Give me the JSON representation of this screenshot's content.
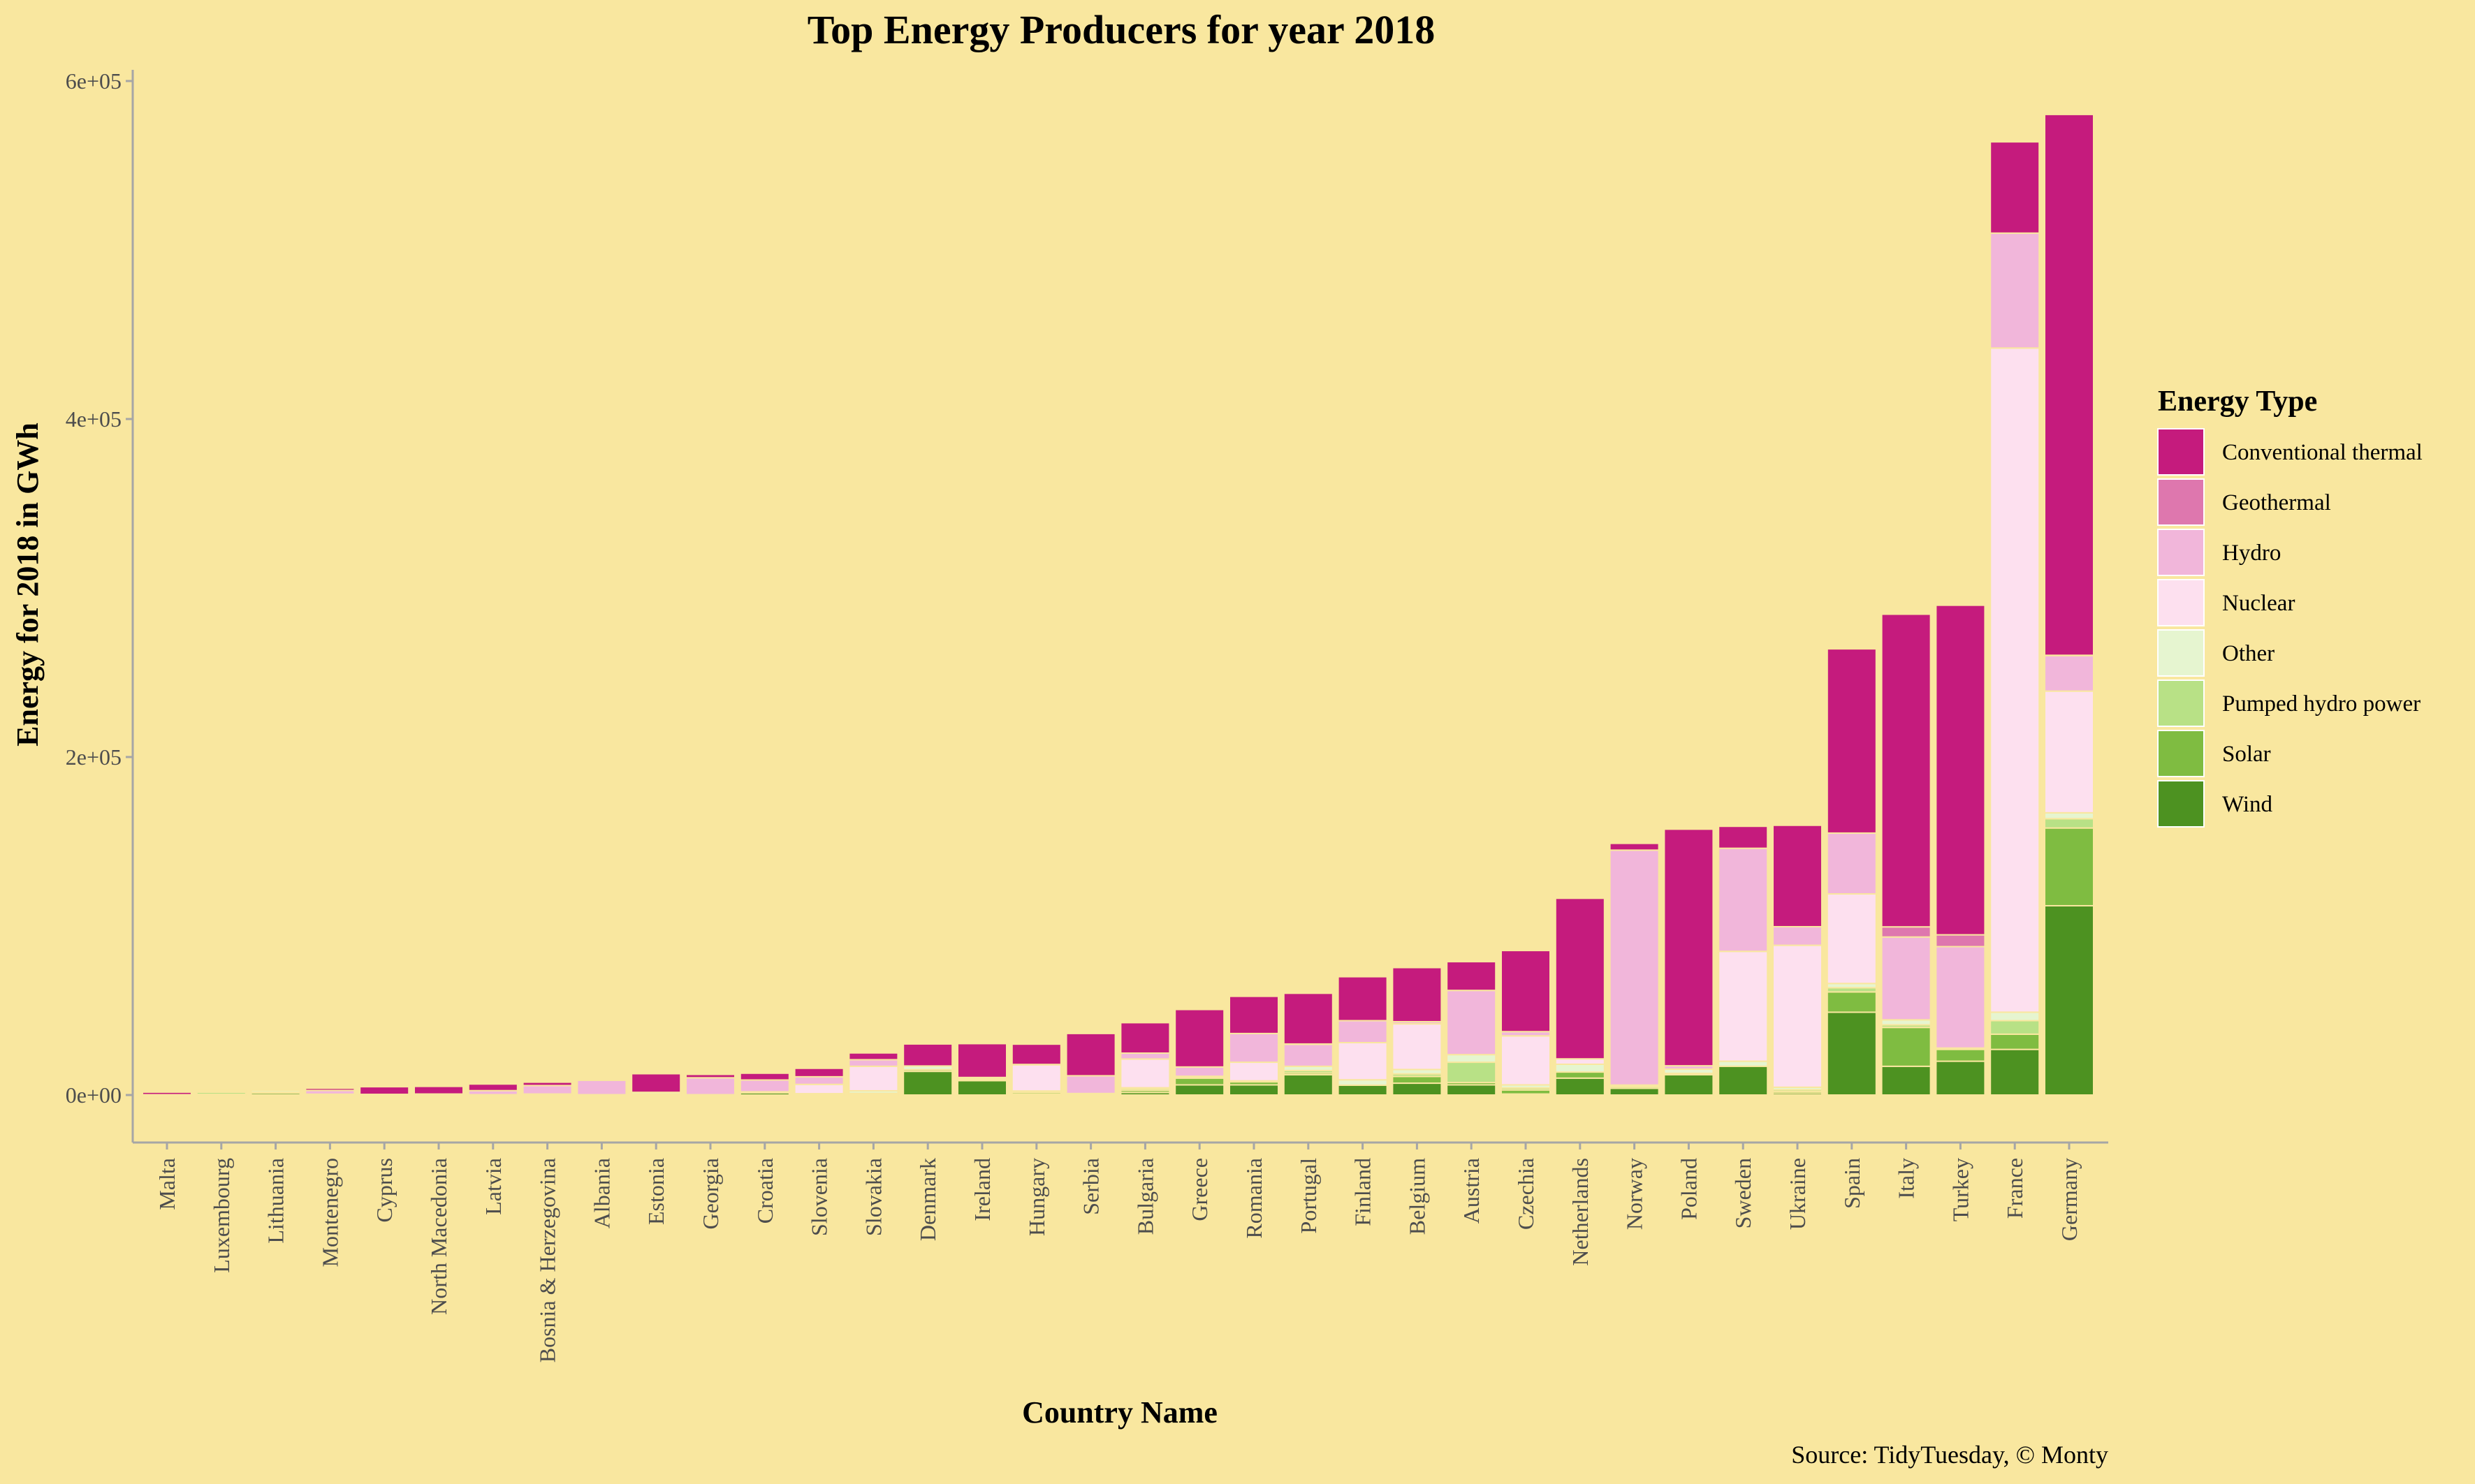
{
  "chart_data": {
    "type": "bar",
    "stacked": true,
    "title": "Top Energy Producers for year 2018",
    "xlabel": "Country Name",
    "ylabel": "Energy for 2018 in GWh",
    "caption": "Source: TidyTuesday, © Monty",
    "ylim": [
      -28000,
      600000
    ],
    "yticks": [
      0,
      200000,
      400000,
      600000
    ],
    "ytick_labels": [
      "0e+00",
      "2e+05",
      "4e+05",
      "6e+05"
    ],
    "grid": false,
    "legend": {
      "title": "Energy Type",
      "position": "right"
    },
    "categories": [
      "Malta",
      "Luxembourg",
      "Lithuania",
      "Montenegro",
      "Cyprus",
      "North Macedonia",
      "Latvia",
      "Bosnia & Herzegovina",
      "Albania",
      "Estonia",
      "Georgia",
      "Croatia",
      "Slovenia",
      "Slovakia",
      "Denmark",
      "Ireland",
      "Hungary",
      "Serbia",
      "Bulgaria",
      "Greece",
      "Romania",
      "Portugal",
      "Finland",
      "Belgium",
      "Austria",
      "Czechia",
      "Netherlands",
      "Norway",
      "Poland",
      "Sweden",
      "Ukraine",
      "Spain",
      "Italy",
      "Turkey",
      "France",
      "Germany"
    ],
    "series": [
      {
        "name": "Wind",
        "color": "#4d9221",
        "values": [
          0,
          300,
          1100,
          300,
          200,
          100,
          100,
          400,
          0,
          600,
          100,
          1300,
          0,
          0,
          14000,
          8500,
          600,
          100,
          1500,
          6000,
          6000,
          12000,
          5800,
          7000,
          6000,
          600,
          10000,
          4000,
          12000,
          17000,
          1100,
          49000,
          17000,
          20000,
          27000,
          112000
        ]
      },
      {
        "name": "Solar",
        "color": "#7fbc41",
        "values": [
          0,
          100,
          100,
          0,
          200,
          100,
          0,
          0,
          0,
          0,
          0,
          100,
          300,
          600,
          1000,
          0,
          1000,
          0,
          1300,
          4000,
          1800,
          1000,
          0,
          4000,
          1400,
          2400,
          3600,
          0,
          0,
          0,
          1000,
          12000,
          23000,
          7000,
          9000,
          46000
        ]
      },
      {
        "name": "Pumped hydro power",
        "color": "#b8e186",
        "values": [
          0,
          1300,
          500,
          0,
          0,
          0,
          0,
          0,
          0,
          0,
          0,
          100,
          200,
          400,
          0,
          300,
          0,
          400,
          1000,
          400,
          0,
          1500,
          0,
          1500,
          12000,
          1200,
          0,
          1000,
          800,
          0,
          1000,
          2500,
          1500,
          0,
          8000,
          5500
        ]
      },
      {
        "name": "Other",
        "color": "#e6f5d0",
        "values": [
          200,
          300,
          1100,
          200,
          0,
          200,
          100,
          200,
          200,
          1000,
          100,
          400,
          300,
          1500,
          2200,
          800,
          800,
          400,
          500,
          700,
          600,
          2500,
          3200,
          2600,
          4500,
          1800,
          4600,
          900,
          2500,
          3000,
          1500,
          2500,
          3000,
          800,
          5000,
          3500
        ]
      },
      {
        "name": "Nuclear",
        "color": "#fde0ef",
        "values": [
          0,
          0,
          0,
          0,
          0,
          0,
          0,
          0,
          0,
          0,
          0,
          0,
          5500,
          14500,
          0,
          0,
          15500,
          0,
          17000,
          0,
          11000,
          0,
          22000,
          27000,
          0,
          29000,
          3200,
          0,
          0,
          65000,
          84000,
          53000,
          0,
          0,
          393000,
          72000
        ]
      },
      {
        "name": "Hydro",
        "color": "#f1b6da",
        "values": [
          0,
          100,
          400,
          2200,
          0,
          200,
          2400,
          5000,
          8500,
          0,
          10000,
          7000,
          4500,
          3900,
          0,
          800,
          200,
          10500,
          3500,
          5500,
          17000,
          13000,
          13000,
          1300,
          38000,
          2500,
          0,
          139000,
          2000,
          61000,
          11000,
          36000,
          49000,
          60000,
          68000,
          21000
        ]
      },
      {
        "name": "Geothermal",
        "color": "#de77ae",
        "values": [
          0,
          0,
          0,
          0,
          0,
          0,
          0,
          0,
          0,
          0,
          0,
          0,
          0,
          0,
          0,
          0,
          0,
          0,
          0,
          0,
          0,
          200,
          0,
          0,
          0,
          0,
          0,
          0,
          0,
          0,
          0,
          0,
          6000,
          7000,
          0,
          200
        ]
      },
      {
        "name": "Conventional thermal",
        "color": "#c51b7d",
        "values": [
          1500,
          300,
          500,
          1300,
          4500,
          4500,
          3900,
          2000,
          0,
          11000,
          2000,
          4000,
          5000,
          4000,
          13000,
          20000,
          12000,
          25000,
          18000,
          34000,
          22000,
          30000,
          26000,
          32000,
          17000,
          48000,
          95000,
          4000,
          140000,
          13000,
          60000,
          109000,
          185000,
          195000,
          54000,
          320000
        ]
      }
    ]
  }
}
